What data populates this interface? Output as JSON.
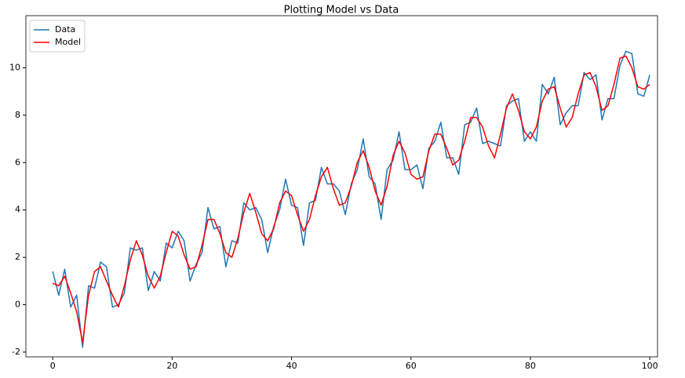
{
  "chart_data": {
    "type": "line",
    "title": "Plotting Model vs Data",
    "x": [
      0,
      1,
      2,
      3,
      4,
      5,
      6,
      7,
      8,
      9,
      10,
      11,
      12,
      13,
      14,
      15,
      16,
      17,
      18,
      19,
      20,
      21,
      22,
      23,
      24,
      25,
      26,
      27,
      28,
      29,
      30,
      31,
      32,
      33,
      34,
      35,
      36,
      37,
      38,
      39,
      40,
      41,
      42,
      43,
      44,
      45,
      46,
      47,
      48,
      49,
      50,
      51,
      52,
      53,
      54,
      55,
      56,
      57,
      58,
      59,
      60,
      61,
      62,
      63,
      64,
      65,
      66,
      67,
      68,
      69,
      70,
      71,
      72,
      73,
      74,
      75,
      76,
      77,
      78,
      79,
      80,
      81,
      82,
      83,
      84,
      85,
      86,
      87,
      88,
      89,
      90,
      91,
      92,
      93,
      94,
      95,
      96,
      97,
      98,
      99,
      100
    ],
    "series": [
      {
        "name": "Data",
        "color": "#1f77b4",
        "values": [
          1.4,
          0.4,
          1.5,
          -0.1,
          0.4,
          -1.8,
          0.8,
          0.7,
          1.8,
          1.6,
          -0.1,
          0.0,
          0.5,
          2.4,
          2.3,
          2.4,
          0.6,
          1.4,
          1.0,
          2.6,
          2.4,
          3.1,
          2.7,
          1.0,
          1.7,
          2.2,
          4.1,
          3.2,
          3.3,
          1.6,
          2.7,
          2.6,
          4.3,
          4.0,
          4.1,
          3.6,
          2.2,
          3.3,
          4.0,
          5.3,
          4.2,
          4.1,
          2.5,
          4.3,
          4.4,
          5.8,
          5.1,
          5.1,
          4.8,
          3.8,
          5.1,
          5.7,
          7.0,
          5.4,
          5.1,
          3.6,
          5.7,
          6.1,
          7.3,
          5.7,
          5.7,
          5.9,
          4.9,
          6.6,
          6.9,
          7.7,
          6.2,
          6.2,
          5.5,
          7.6,
          7.7,
          8.3,
          6.8,
          6.9,
          6.8,
          6.7,
          8.4,
          8.6,
          8.7,
          6.9,
          7.3,
          6.9,
          9.3,
          8.9,
          9.6,
          7.6,
          8.1,
          8.4,
          8.4,
          9.8,
          9.5,
          9.7,
          7.8,
          8.7,
          8.7,
          10.1,
          10.7,
          10.6,
          8.9,
          8.8,
          9.7
        ]
      },
      {
        "name": "Model",
        "color": "#ff0000",
        "values": [
          0.9,
          0.8,
          1.2,
          0.5,
          -0.3,
          -1.6,
          0.4,
          1.4,
          1.6,
          1.0,
          0.4,
          -0.1,
          0.8,
          1.9,
          2.7,
          2.1,
          1.2,
          0.7,
          1.2,
          2.2,
          3.1,
          2.9,
          2.1,
          1.5,
          1.6,
          2.5,
          3.6,
          3.6,
          3.0,
          2.2,
          2.0,
          2.8,
          3.9,
          4.7,
          3.9,
          3.0,
          2.7,
          3.2,
          4.3,
          4.8,
          4.6,
          3.8,
          3.1,
          3.6,
          4.6,
          5.4,
          5.8,
          4.9,
          4.2,
          4.3,
          5.0,
          6.0,
          6.5,
          5.8,
          4.8,
          4.2,
          5.0,
          6.3,
          6.9,
          6.4,
          5.5,
          5.3,
          5.4,
          6.5,
          7.2,
          7.2,
          6.6,
          5.9,
          6.1,
          6.9,
          7.9,
          7.9,
          7.5,
          6.7,
          6.2,
          7.2,
          8.3,
          8.9,
          8.2,
          7.3,
          7.0,
          7.5,
          8.6,
          9.1,
          9.2,
          8.3,
          7.5,
          7.9,
          8.9,
          9.7,
          9.8,
          9.2,
          8.2,
          8.4,
          9.3,
          10.4,
          10.5,
          10.0,
          9.2,
          9.1,
          9.3
        ]
      }
    ],
    "xlim": [
      -4.5,
      101.3
    ],
    "xticks": [
      0,
      20,
      40,
      60,
      80,
      100
    ],
    "ylim": [
      -2.2,
      12.2
    ],
    "yticks": [
      -2,
      0,
      2,
      4,
      6,
      8,
      10
    ],
    "grid": false,
    "legend": "upper left"
  }
}
